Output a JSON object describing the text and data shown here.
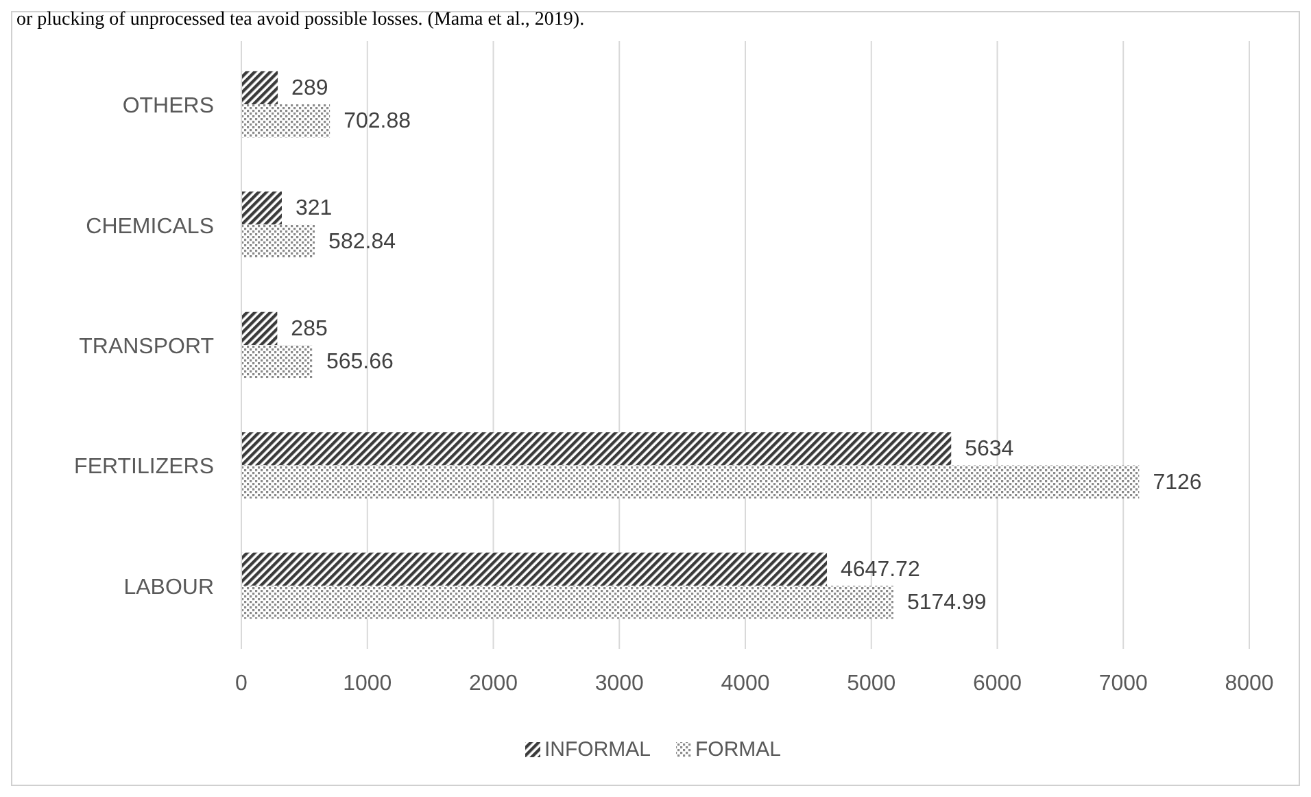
{
  "chart_data": {
    "type": "bar",
    "orientation": "horizontal",
    "categories": [
      "OTHERS",
      "CHEMICALS",
      "TRANSPORT",
      "FERTILIZERS",
      "LABOUR"
    ],
    "series": [
      {
        "name": "INFORMAL",
        "color": "#3a3a3a",
        "values": [
          289,
          321,
          285,
          5634,
          4647.72
        ]
      },
      {
        "name": "FORMAL",
        "color": "#8a8a8a",
        "values": [
          702.88,
          582.84,
          565.66,
          7126,
          5174.99
        ]
      }
    ],
    "xlim": [
      0,
      8000
    ],
    "xticks": [
      0,
      1000,
      2000,
      3000,
      4000,
      5000,
      6000,
      7000,
      8000
    ],
    "grid": "x",
    "legend": "bottom",
    "data_labels": true,
    "annotations": [
      "or plucking of unprocessed tea avoid possible losses. (Mama et al., 2019)."
    ]
  }
}
